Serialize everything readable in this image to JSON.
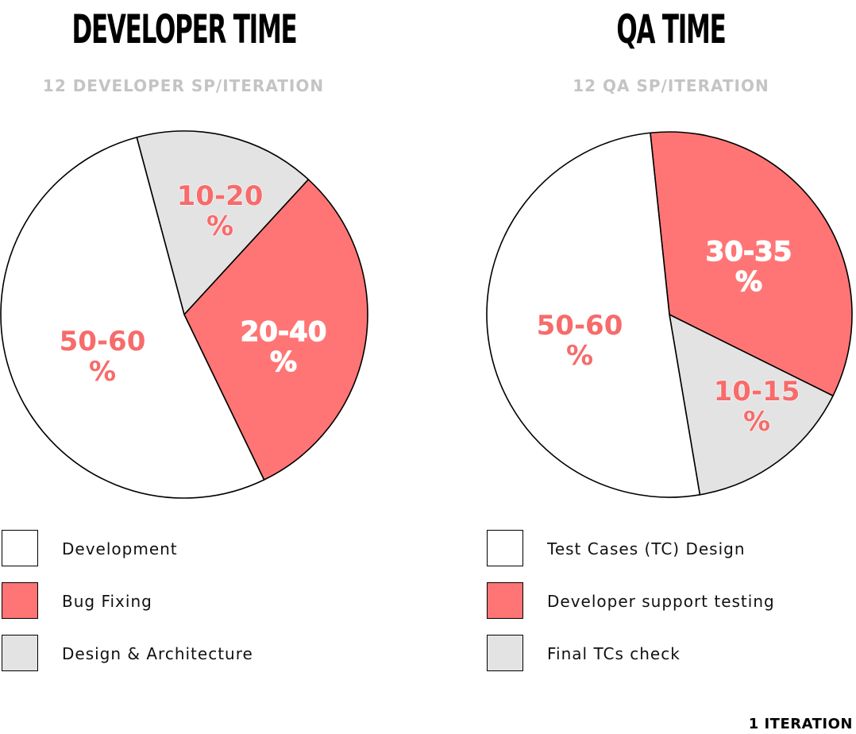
{
  "charts_text": {
    "developer": {
      "title": "DEVELOPER TIME",
      "subtitle": "12 DEVELOPER SP/ITERATION"
    },
    "qa": {
      "title": "QA TIME",
      "subtitle": "12 QA SP/ITERATION"
    }
  },
  "legend": {
    "developer": [
      {
        "label": "Development",
        "color": "#ffffff"
      },
      {
        "label": "Bug Fixing",
        "color": "#ff7575"
      },
      {
        "label": "Design & Architecture",
        "color": "#e3e3e3"
      }
    ],
    "qa": [
      {
        "label": "Test Cases (TC) Design",
        "color": "#ffffff"
      },
      {
        "label": "Developer support testing",
        "color": "#ff7575"
      },
      {
        "label": "Final TCs check",
        "color": "#e3e3e3"
      }
    ]
  },
  "footer": "1 ITERATION",
  "colors": {
    "white": "#ffffff",
    "red": "#ff7575",
    "gray": "#e3e3e3",
    "label_red": "#f76b6b",
    "label_white": "#ffffff"
  },
  "chart_data": [
    {
      "type": "pie",
      "title": "DEVELOPER TIME",
      "subtitle": "12 DEVELOPER SP/ITERATION",
      "legend_position": "bottom",
      "start_angle_deg": -15,
      "slices": [
        {
          "label": "Design & Architecture",
          "value_text": "10-20 %",
          "share": 0.16,
          "color": "#e3e3e3",
          "label_color": "#f76b6b"
        },
        {
          "label": "Bug Fixing",
          "value_text": "20-40 %",
          "share": 0.31,
          "color": "#ff7575",
          "label_color": "#ffffff"
        },
        {
          "label": "Development",
          "value_text": "50-60 %",
          "share": 0.53,
          "color": "#ffffff",
          "label_color": "#f76b6b"
        }
      ]
    },
    {
      "type": "pie",
      "title": "QA TIME",
      "subtitle": "12 QA SP/ITERATION",
      "legend_position": "bottom",
      "start_angle_deg": -6,
      "slices": [
        {
          "label": "Developer support testing",
          "value_text": "30-35 %",
          "share": 0.34,
          "color": "#ff7575",
          "label_color": "#ffffff"
        },
        {
          "label": "Final TCs check",
          "value_text": "10-15 %",
          "share": 0.15,
          "color": "#e3e3e3",
          "label_color": "#f76b6b"
        },
        {
          "label": "Test Cases (TC) Design",
          "value_text": "50-60 %",
          "share": 0.51,
          "color": "#ffffff",
          "label_color": "#f76b6b"
        }
      ]
    }
  ]
}
